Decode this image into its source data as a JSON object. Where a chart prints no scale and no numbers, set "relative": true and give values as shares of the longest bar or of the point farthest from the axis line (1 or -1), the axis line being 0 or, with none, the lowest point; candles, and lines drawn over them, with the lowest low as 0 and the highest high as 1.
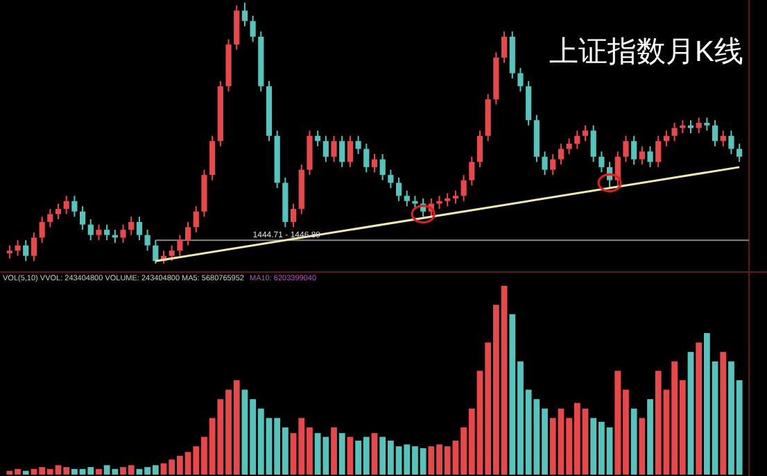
{
  "chart_data": [
    {
      "type": "candlestick",
      "title": "上证指数月K线",
      "relative": true,
      "categories": [
        null,
        null,
        null,
        null,
        null,
        null,
        null,
        null,
        null,
        null,
        null,
        null,
        null,
        null,
        null,
        null,
        null,
        null,
        null,
        null,
        null,
        null,
        null,
        null,
        null,
        null,
        null,
        null,
        null,
        null,
        null,
        null,
        null,
        null,
        null,
        null,
        null,
        null,
        null,
        null,
        null,
        null,
        null,
        null,
        null,
        null,
        null,
        null,
        null,
        null,
        null,
        null,
        null,
        null,
        null,
        null,
        null,
        null,
        null,
        null,
        null,
        null,
        null,
        null,
        null,
        null,
        null,
        null,
        null,
        null,
        null,
        null,
        null,
        null,
        null,
        null,
        null,
        null,
        null,
        null,
        null,
        null,
        null,
        null,
        null,
        null,
        null,
        null,
        null,
        null,
        null
      ],
      "ohlc": [
        [
          0.04,
          0.07,
          0.02,
          0.05
        ],
        [
          0.05,
          0.09,
          0.03,
          0.07
        ],
        [
          0.07,
          0.09,
          0.01,
          0.03
        ],
        [
          0.03,
          0.12,
          0.01,
          0.1
        ],
        [
          0.1,
          0.18,
          0.08,
          0.16
        ],
        [
          0.16,
          0.21,
          0.14,
          0.19
        ],
        [
          0.19,
          0.23,
          0.17,
          0.21
        ],
        [
          0.21,
          0.26,
          0.19,
          0.24
        ],
        [
          0.24,
          0.26,
          0.18,
          0.2
        ],
        [
          0.2,
          0.22,
          0.13,
          0.15
        ],
        [
          0.15,
          0.17,
          0.09,
          0.11
        ],
        [
          0.11,
          0.15,
          0.09,
          0.13
        ],
        [
          0.13,
          0.15,
          0.09,
          0.11
        ],
        [
          0.11,
          0.13,
          0.08,
          0.1
        ],
        [
          0.1,
          0.15,
          0.08,
          0.13
        ],
        [
          0.13,
          0.18,
          0.11,
          0.16
        ],
        [
          0.16,
          0.18,
          0.09,
          0.11
        ],
        [
          0.11,
          0.13,
          0.05,
          0.07
        ],
        [
          0.07,
          0.09,
          0,
          0.01
        ],
        [
          0.01,
          0.05,
          0,
          0.03
        ],
        [
          0.03,
          0.07,
          0.01,
          0.05
        ],
        [
          0.05,
          0.11,
          0.03,
          0.09
        ],
        [
          0.09,
          0.16,
          0.07,
          0.14
        ],
        [
          0.14,
          0.22,
          0.12,
          0.2
        ],
        [
          0.2,
          0.36,
          0.18,
          0.34
        ],
        [
          0.34,
          0.49,
          0.32,
          0.47
        ],
        [
          0.47,
          0.7,
          0.45,
          0.68
        ],
        [
          0.68,
          0.86,
          0.66,
          0.84
        ],
        [
          0.84,
          0.99,
          0.82,
          0.97
        ],
        [
          0.97,
          1,
          0.91,
          0.93
        ],
        [
          0.93,
          0.95,
          0.85,
          0.87
        ],
        [
          0.87,
          0.89,
          0.66,
          0.68
        ],
        [
          0.68,
          0.7,
          0.47,
          0.49
        ],
        [
          0.49,
          0.51,
          0.29,
          0.31
        ],
        [
          0.31,
          0.33,
          0.14,
          0.16
        ],
        [
          0.16,
          0.23,
          0.14,
          0.21
        ],
        [
          0.21,
          0.38,
          0.19,
          0.36
        ],
        [
          0.36,
          0.51,
          0.34,
          0.49
        ],
        [
          0.49,
          0.51,
          0.45,
          0.47
        ],
        [
          0.47,
          0.49,
          0.39,
          0.41
        ],
        [
          0.41,
          0.49,
          0.39,
          0.47
        ],
        [
          0.47,
          0.49,
          0.37,
          0.39
        ],
        [
          0.39,
          0.49,
          0.37,
          0.47
        ],
        [
          0.47,
          0.49,
          0.42,
          0.44
        ],
        [
          0.44,
          0.46,
          0.35,
          0.37
        ],
        [
          0.37,
          0.42,
          0.35,
          0.4
        ],
        [
          0.4,
          0.42,
          0.32,
          0.34
        ],
        [
          0.34,
          0.36,
          0.29,
          0.31
        ],
        [
          0.31,
          0.33,
          0.24,
          0.26
        ],
        [
          0.26,
          0.28,
          0.22,
          0.24
        ],
        [
          0.24,
          0.26,
          0.21,
          0.23
        ],
        [
          0.23,
          0.25,
          0.18,
          0.2
        ],
        [
          0.2,
          0.25,
          0.18,
          0.23
        ],
        [
          0.23,
          0.26,
          0.21,
          0.24
        ],
        [
          0.24,
          0.27,
          0.22,
          0.25
        ],
        [
          0.25,
          0.28,
          0.23,
          0.26
        ],
        [
          0.26,
          0.34,
          0.24,
          0.32
        ],
        [
          0.32,
          0.41,
          0.3,
          0.39
        ],
        [
          0.39,
          0.51,
          0.37,
          0.49
        ],
        [
          0.49,
          0.65,
          0.47,
          0.63
        ],
        [
          0.63,
          0.81,
          0.61,
          0.79
        ],
        [
          0.79,
          0.89,
          0.77,
          0.87
        ],
        [
          0.87,
          0.89,
          0.71,
          0.73
        ],
        [
          0.73,
          0.75,
          0.66,
          0.68
        ],
        [
          0.68,
          0.7,
          0.53,
          0.55
        ],
        [
          0.55,
          0.57,
          0.39,
          0.41
        ],
        [
          0.41,
          0.43,
          0.34,
          0.36
        ],
        [
          0.36,
          0.42,
          0.34,
          0.4
        ],
        [
          0.4,
          0.46,
          0.38,
          0.44
        ],
        [
          0.44,
          0.48,
          0.42,
          0.46
        ],
        [
          0.46,
          0.51,
          0.44,
          0.49
        ],
        [
          0.49,
          0.53,
          0.47,
          0.51
        ],
        [
          0.51,
          0.53,
          0.39,
          0.41
        ],
        [
          0.41,
          0.43,
          0.35,
          0.37
        ],
        [
          0.37,
          0.39,
          0.29,
          0.32
        ],
        [
          0.32,
          0.43,
          0.3,
          0.41
        ],
        [
          0.41,
          0.49,
          0.39,
          0.47
        ],
        [
          0.47,
          0.49,
          0.38,
          0.4
        ],
        [
          0.4,
          0.45,
          0.38,
          0.43
        ],
        [
          0.43,
          0.45,
          0.37,
          0.39
        ],
        [
          0.39,
          0.49,
          0.37,
          0.47
        ],
        [
          0.47,
          0.51,
          0.45,
          0.49
        ],
        [
          0.49,
          0.54,
          0.47,
          0.52
        ],
        [
          0.52,
          0.55,
          0.5,
          0.53
        ],
        [
          0.53,
          0.55,
          0.5,
          0.52
        ],
        [
          0.52,
          0.56,
          0.5,
          0.54
        ],
        [
          0.54,
          0.56,
          0.51,
          0.53
        ],
        [
          0.53,
          0.55,
          0.45,
          0.47
        ],
        [
          0.47,
          0.51,
          0.45,
          0.49
        ],
        [
          0.49,
          0.51,
          0.42,
          0.44
        ],
        [
          0.44,
          0.46,
          0.39,
          0.41
        ]
      ],
      "colors": [
        "#e8484a",
        "#e8484a",
        "#55c4bc",
        "#e8484a",
        "#e8484a",
        "#e8484a",
        "#e8484a",
        "#e8484a",
        "#55c4bc",
        "#55c4bc",
        "#55c4bc",
        "#e8484a",
        "#55c4bc",
        "#55c4bc",
        "#e8484a",
        "#e8484a",
        "#55c4bc",
        "#55c4bc",
        "#55c4bc",
        "#e8484a",
        "#e8484a",
        "#e8484a",
        "#e8484a",
        "#e8484a",
        "#e8484a",
        "#e8484a",
        "#e8484a",
        "#e8484a",
        "#e8484a",
        "#55c4bc",
        "#55c4bc",
        "#55c4bc",
        "#55c4bc",
        "#55c4bc",
        "#55c4bc",
        "#e8484a",
        "#e8484a",
        "#e8484a",
        "#55c4bc",
        "#55c4bc",
        "#e8484a",
        "#55c4bc",
        "#e8484a",
        "#55c4bc",
        "#55c4bc",
        "#e8484a",
        "#55c4bc",
        "#55c4bc",
        "#55c4bc",
        "#55c4bc",
        "#55c4bc",
        "#55c4bc",
        "#e8484a",
        "#e8484a",
        "#e8484a",
        "#e8484a",
        "#e8484a",
        "#e8484a",
        "#e8484a",
        "#e8484a",
        "#e8484a",
        "#e8484a",
        "#55c4bc",
        "#55c4bc",
        "#55c4bc",
        "#55c4bc",
        "#55c4bc",
        "#e8484a",
        "#e8484a",
        "#e8484a",
        "#e8484a",
        "#e8484a",
        "#55c4bc",
        "#55c4bc",
        "#55c4bc",
        "#e8484a",
        "#e8484a",
        "#55c4bc",
        "#e8484a",
        "#55c4bc",
        "#e8484a",
        "#e8484a",
        "#e8484a",
        "#e8484a",
        "#55c4bc",
        "#e8484a",
        "#55c4bc",
        "#55c4bc",
        "#e8484a",
        "#55c4bc",
        "#55c4bc"
      ],
      "series": [
        {
          "type": "line",
          "color": "#f2ecaa",
          "values": [
            null,
            null,
            null,
            null,
            null,
            null,
            null,
            null,
            null,
            null,
            null,
            null,
            null,
            null,
            null,
            null,
            null,
            null,
            0.01,
            null,
            null,
            null,
            null,
            null,
            null,
            null,
            null,
            null,
            null,
            null,
            null,
            null,
            null,
            null,
            null,
            null,
            null,
            null,
            null,
            null,
            null,
            null,
            null,
            null,
            null,
            null,
            null,
            null,
            null,
            null,
            null,
            null,
            null,
            null,
            null,
            null,
            null,
            null,
            null,
            null,
            null,
            null,
            null,
            null,
            null,
            null,
            null,
            null,
            null,
            null,
            null,
            null,
            null,
            null,
            null,
            null,
            null,
            null,
            null,
            null,
            null,
            null,
            null,
            null,
            null,
            null,
            null,
            null,
            null,
            null,
            0.37
          ]
        }
      ],
      "ref_lines": [
        {
          "axis": "y",
          "value": 0.09,
          "color": "#888888"
        }
      ],
      "annotations": [
        "1444.71 - 1446.89"
      ]
    },
    {
      "type": "bar",
      "relative": true,
      "categories": [
        null,
        null,
        null,
        null,
        null,
        null,
        null,
        null,
        null,
        null,
        null,
        null,
        null,
        null,
        null,
        null,
        null,
        null,
        null,
        null,
        null,
        null,
        null,
        null,
        null,
        null,
        null,
        null,
        null,
        null,
        null,
        null,
        null,
        null,
        null,
        null,
        null,
        null,
        null,
        null,
        null,
        null,
        null,
        null,
        null,
        null,
        null,
        null,
        null,
        null,
        null,
        null,
        null,
        null,
        null,
        null,
        null,
        null,
        null,
        null,
        null,
        null,
        null,
        null,
        null,
        null,
        null,
        null,
        null,
        null,
        null,
        null,
        null,
        null,
        null,
        null,
        null,
        null,
        null,
        null,
        null,
        null,
        null,
        null,
        null,
        null,
        null,
        null,
        null,
        null,
        null
      ],
      "values": [
        0.02,
        0.03,
        0.02,
        0.03,
        0.04,
        0.03,
        0.05,
        0.04,
        0.03,
        0.03,
        0.04,
        0.03,
        0.05,
        0.03,
        0.04,
        0.05,
        0.03,
        0.04,
        0.05,
        0.06,
        0.08,
        0.1,
        0.12,
        0.15,
        0.2,
        0.3,
        0.4,
        0.45,
        0.5,
        0.45,
        0.4,
        0.35,
        0.3,
        0.3,
        0.25,
        0.22,
        0.3,
        0.25,
        0.22,
        0.2,
        0.25,
        0.22,
        0.2,
        0.18,
        0.2,
        0.22,
        0.2,
        0.18,
        0.15,
        0.16,
        0.15,
        0.14,
        0.15,
        0.16,
        0.15,
        0.18,
        0.25,
        0.35,
        0.55,
        0.7,
        0.9,
        1.0,
        0.85,
        0.6,
        0.45,
        0.4,
        0.35,
        0.3,
        0.35,
        0.3,
        0.38,
        0.35,
        0.3,
        0.28,
        0.25,
        0.55,
        0.45,
        0.35,
        0.3,
        0.4,
        0.55,
        0.45,
        0.6,
        0.5,
        0.65,
        0.7,
        0.75,
        0.6,
        0.65,
        0.6,
        0.5
      ],
      "colors": [
        "#e8484a",
        "#e8484a",
        "#55c4bc",
        "#e8484a",
        "#e8484a",
        "#e8484a",
        "#e8484a",
        "#e8484a",
        "#55c4bc",
        "#55c4bc",
        "#55c4bc",
        "#e8484a",
        "#55c4bc",
        "#55c4bc",
        "#e8484a",
        "#e8484a",
        "#55c4bc",
        "#55c4bc",
        "#55c4bc",
        "#e8484a",
        "#e8484a",
        "#e8484a",
        "#e8484a",
        "#e8484a",
        "#e8484a",
        "#e8484a",
        "#e8484a",
        "#e8484a",
        "#e8484a",
        "#55c4bc",
        "#55c4bc",
        "#55c4bc",
        "#55c4bc",
        "#55c4bc",
        "#55c4bc",
        "#e8484a",
        "#e8484a",
        "#e8484a",
        "#55c4bc",
        "#55c4bc",
        "#e8484a",
        "#55c4bc",
        "#e8484a",
        "#55c4bc",
        "#55c4bc",
        "#e8484a",
        "#55c4bc",
        "#55c4bc",
        "#55c4bc",
        "#55c4bc",
        "#55c4bc",
        "#55c4bc",
        "#e8484a",
        "#e8484a",
        "#e8484a",
        "#e8484a",
        "#e8484a",
        "#e8484a",
        "#e8484a",
        "#e8484a",
        "#e8484a",
        "#e8484a",
        "#55c4bc",
        "#55c4bc",
        "#55c4bc",
        "#55c4bc",
        "#55c4bc",
        "#e8484a",
        "#e8484a",
        "#e8484a",
        "#e8484a",
        "#e8484a",
        "#55c4bc",
        "#55c4bc",
        "#55c4bc",
        "#e8484a",
        "#e8484a",
        "#55c4bc",
        "#e8484a",
        "#55c4bc",
        "#e8484a",
        "#e8484a",
        "#e8484a",
        "#e8484a",
        "#55c4bc",
        "#e8484a",
        "#55c4bc",
        "#55c4bc",
        "#e8484a",
        "#55c4bc",
        "#55c4bc"
      ],
      "annotations": [
        "VOL(5,10) VVOL: 243404800 VOLUME: 243404800 MA5: 5680765952",
        "MA10: 6203399040"
      ]
    }
  ]
}
